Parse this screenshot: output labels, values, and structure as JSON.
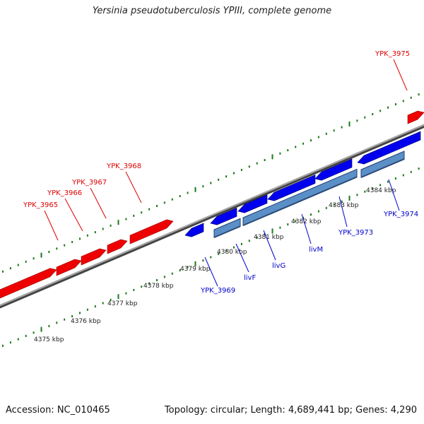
{
  "title": "Yersinia pseudotuberculosis YPIII, complete genome",
  "footer": {
    "accession": "Accession: NC_010465",
    "summary": "Topology: circular; Length: 4,689,441 bp; Genes: 4,290"
  },
  "colors": {
    "forward_gene": "#ee0000",
    "reverse_gene": "#0000ee",
    "cds_feature": "#5b8fc8",
    "backbone": "#8a8a8a",
    "tick_green": "#1a7a1a",
    "label_red": "#dd0000",
    "label_blue": "#0000cc"
  },
  "scale_ticks": [
    "4375 kbp",
    "4376 kbp",
    "4377 kbp",
    "4378 kbp",
    "4379 kbp",
    "4380 kbp",
    "4381 kbp",
    "4382 kbp",
    "4383 kbp",
    "4384 kbp"
  ],
  "forward_labels": [
    "YPK_3965",
    "YPK_3966",
    "YPK_3967",
    "YPK_3968",
    "YPK_3975"
  ],
  "reverse_labels": [
    "YPK_3969",
    "livF",
    "livG",
    "livM",
    "YPK_3973",
    "YPK_3974"
  ]
}
